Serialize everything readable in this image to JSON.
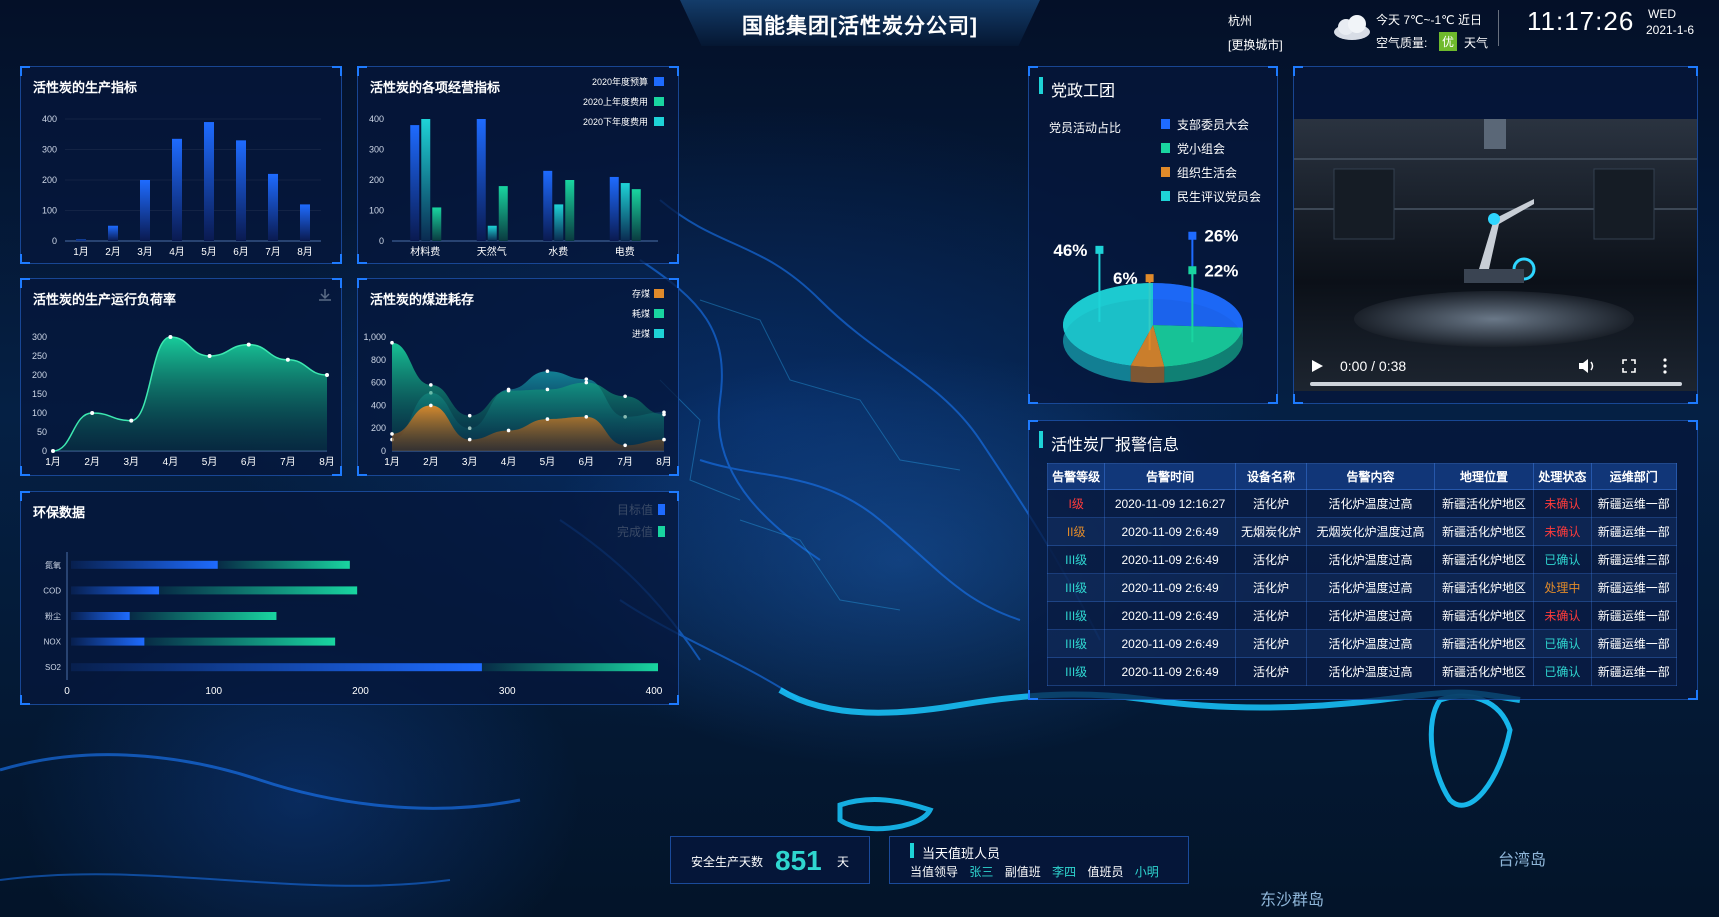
{
  "header": {
    "title": "国能集团[活性炭分公司]",
    "city": "杭州",
    "change_city": "[更换城市]",
    "weather_line1": "今天 7℃~-1℃ 近日",
    "air_label": "空气质量:",
    "air_badge": "优",
    "weather_label": "天气",
    "time": "11:17:26",
    "weekday": "WED",
    "date": "2021-1-6"
  },
  "panels": {
    "production": {
      "title": "活性炭的生产指标"
    },
    "operation": {
      "title": "活性炭的各项经营指标"
    },
    "load": {
      "title": "活性炭的生产运行负荷率"
    },
    "coal": {
      "title": "活性炭的煤进耗存"
    },
    "env": {
      "title": "环保数据"
    },
    "party": {
      "title": "党政工团",
      "subtitle": "党员活动占比"
    },
    "alarm": {
      "title": "活性炭厂报警信息"
    }
  },
  "chart_data": [
    {
      "type": "bar",
      "title": "活性炭的生产指标",
      "categories": [
        "1月",
        "2月",
        "3月",
        "4月",
        "5月",
        "6月",
        "7月",
        "8月"
      ],
      "values": [
        5,
        50,
        200,
        335,
        390,
        330,
        220,
        120
      ],
      "ylim": [
        0,
        400
      ],
      "yticks": [
        "0",
        "100",
        "200",
        "300",
        "400"
      ]
    },
    {
      "type": "bar",
      "title": "活性炭的各项经营指标",
      "categories": [
        "材料费",
        "天然气",
        "水费",
        "电费"
      ],
      "series": [
        {
          "name": "2020年度预算",
          "values": [
            380,
            400,
            230,
            210
          ]
        },
        {
          "name": "2020上年度费用",
          "values": [
            110,
            180,
            200,
            170
          ]
        },
        {
          "name": "2020下年度费用",
          "values": [
            400,
            50,
            120,
            190
          ]
        }
      ],
      "ylim": [
        0,
        400
      ],
      "yticks": [
        "0",
        "100",
        "200",
        "300",
        "400"
      ]
    },
    {
      "type": "area",
      "title": "活性炭的生产运行负荷率",
      "categories": [
        "1月",
        "2月",
        "3月",
        "4月",
        "5月",
        "6月",
        "7月",
        "8月"
      ],
      "values": [
        0,
        100,
        80,
        300,
        250,
        280,
        240,
        200
      ],
      "ylim": [
        0,
        300
      ],
      "yticks": [
        "0",
        "50",
        "100",
        "150",
        "200",
        "250",
        "300"
      ]
    },
    {
      "type": "area",
      "title": "活性炭的煤进耗存",
      "categories": [
        "1月",
        "2月",
        "3月",
        "4月",
        "5月",
        "6月",
        "7月",
        "8月"
      ],
      "series": [
        {
          "name": "存煤",
          "values": [
            150,
            400,
            100,
            180,
            280,
            300,
            50,
            100
          ]
        },
        {
          "name": "耗煤",
          "values": [
            950,
            580,
            310,
            530,
            540,
            600,
            480,
            320
          ]
        },
        {
          "name": "进煤",
          "values": [
            100,
            510,
            200,
            540,
            700,
            630,
            300,
            340
          ]
        }
      ],
      "ylim": [
        0,
        1000
      ],
      "yticks": [
        "0",
        "200",
        "400",
        "600",
        "800",
        "1,000"
      ]
    },
    {
      "type": "bar",
      "title": "环保数据",
      "categories": [
        "氮氧",
        "COD",
        "粉尘",
        "NOX",
        "SO2"
      ],
      "series": [
        {
          "name": "目标值",
          "values": [
            100,
            60,
            40,
            50,
            280
          ]
        },
        {
          "name": "完成值",
          "values": [
            190,
            195,
            140,
            180,
            400
          ]
        }
      ],
      "xlim": [
        0,
        400
      ],
      "xticks": [
        "0",
        "100",
        "200",
        "300",
        "400"
      ]
    },
    {
      "type": "pie",
      "title": "党员活动占比",
      "labels": [
        "支部委员大会",
        "党小组会",
        "组织生活会",
        "民生评议党员会"
      ],
      "values": [
        26,
        22,
        6,
        46
      ],
      "value_labels": [
        "26%",
        "22%",
        "6%",
        "46%"
      ]
    }
  ],
  "colors": {
    "blue": "#1e6bff",
    "green": "#19d5a0",
    "orange": "#e08a2a",
    "cyan": "#1ed3d7"
  },
  "video": {
    "time": "0:00 / 0:38"
  },
  "alarm_table": {
    "headers": [
      "告警等级",
      "告警时间",
      "设备名称",
      "告警内容",
      "地理位置",
      "处理状态",
      "运维部门"
    ],
    "rows": [
      [
        "I级",
        "2020-11-09 12:16:27",
        "活化炉",
        "活化炉温度过高",
        "新疆活化炉地区",
        "未确认",
        "新疆运维一部"
      ],
      [
        "II级",
        "2020-11-09 2:6:49",
        "无烟炭化炉",
        "无烟炭化炉温度过高",
        "新疆活化炉地区",
        "未确认",
        "新疆运维一部"
      ],
      [
        "III级",
        "2020-11-09 2:6:49",
        "活化炉",
        "活化炉温度过高",
        "新疆活化炉地区",
        "已确认",
        "新疆运维三部"
      ],
      [
        "III级",
        "2020-11-09 2:6:49",
        "活化炉",
        "活化炉温度过高",
        "新疆活化炉地区",
        "处理中",
        "新疆运维一部"
      ],
      [
        "III级",
        "2020-11-09 2:6:49",
        "活化炉",
        "活化炉温度过高",
        "新疆活化炉地区",
        "未确认",
        "新疆运维一部"
      ],
      [
        "III级",
        "2020-11-09 2:6:49",
        "活化炉",
        "活化炉温度过高",
        "新疆活化炉地区",
        "已确认",
        "新疆运维一部"
      ],
      [
        "III级",
        "2020-11-09 2:6:49",
        "活化炉",
        "活化炉温度过高",
        "新疆活化炉地区",
        "已确认",
        "新疆运维一部"
      ]
    ]
  },
  "footer": {
    "safety_label": "安全生产天数",
    "safety_days": "851",
    "safety_unit": "天",
    "duty_title": "当天值班人员",
    "leader_label": "当值领导",
    "leader": "张三",
    "vice_label": "副值班",
    "vice": "李四",
    "staff_label": "值班员",
    "staff": "小明"
  },
  "map_labels": {
    "taiwan": "台湾岛",
    "dongsha": "东沙群岛"
  }
}
